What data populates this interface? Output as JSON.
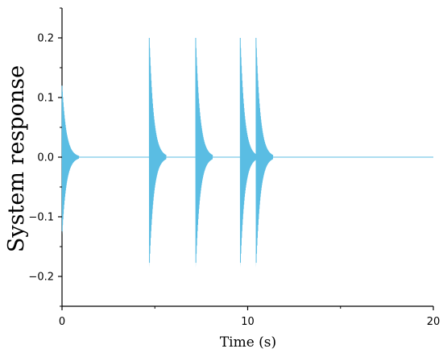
{
  "chart_data": {
    "type": "line",
    "title": "",
    "xlabel": "Time (s)",
    "ylabel": "System response",
    "xlim": [
      0,
      20
    ],
    "ylim": [
      -0.25,
      0.25
    ],
    "x_ticks": [
      {
        "value": 0,
        "label": "0"
      },
      {
        "value": 10,
        "label": "10"
      },
      {
        "value": 20,
        "label": "20"
      }
    ],
    "y_ticks": [
      {
        "value": -0.2,
        "label": "−0.2"
      },
      {
        "value": -0.1,
        "label": "−0.1"
      },
      {
        "value": 0.0,
        "label": "0.0"
      },
      {
        "value": 0.1,
        "label": "0.1"
      },
      {
        "value": 0.2,
        "label": "0.2"
      }
    ],
    "grid": false,
    "series": [
      {
        "color": "#5bbde3",
        "description": "decaying oscillation bursts",
        "bursts": [
          {
            "t": 0.0,
            "peak_pos": 0.12,
            "peak_neg": -0.13
          },
          {
            "t": 4.7,
            "peak_pos": 0.2,
            "peak_neg": -0.185
          },
          {
            "t": 7.2,
            "peak_pos": 0.2,
            "peak_neg": -0.185
          },
          {
            "t": 9.6,
            "peak_pos": 0.2,
            "peak_neg": -0.185
          },
          {
            "t": 10.45,
            "peak_pos": 0.2,
            "peak_neg": -0.185
          }
        ],
        "decay_time_s": 0.9
      }
    ]
  }
}
